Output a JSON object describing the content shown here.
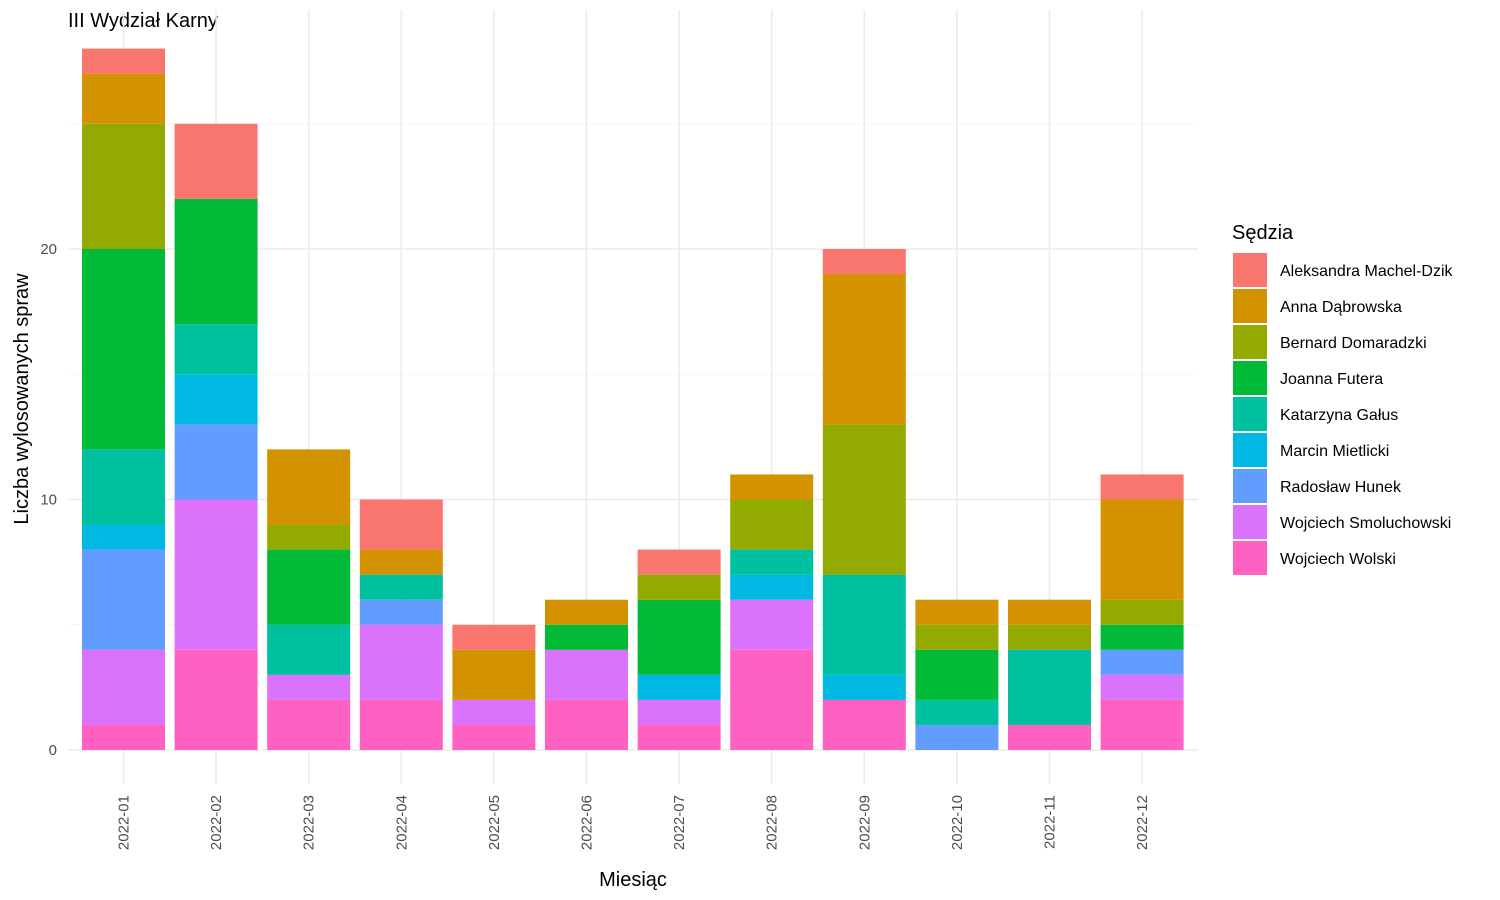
{
  "chart_data": {
    "type": "bar",
    "stacked": true,
    "title": "III Wydział Karny",
    "xlabel": "Miesiąc",
    "ylabel": "Liczba wylosowanych spraw",
    "ylim": [
      0,
      28
    ],
    "y_ticks": [
      0,
      10,
      20
    ],
    "grid": true,
    "legend_title": "Sędzia",
    "legend_position": "right",
    "categories": [
      "2022-01",
      "2022-02",
      "2022-03",
      "2022-04",
      "2022-05",
      "2022-06",
      "2022-07",
      "2022-08",
      "2022-09",
      "2022-10",
      "2022-11",
      "2022-12"
    ],
    "series": [
      {
        "name": "Aleksandra Machel-Dzik",
        "color": "#F8766D",
        "values": [
          1,
          3,
          0,
          2,
          1,
          0,
          1,
          0,
          1,
          0,
          0,
          1
        ]
      },
      {
        "name": "Anna Dąbrowska",
        "color": "#D39200",
        "values": [
          2,
          0,
          3,
          1,
          2,
          1,
          0,
          1,
          6,
          1,
          1,
          4
        ]
      },
      {
        "name": "Bernard Domaradzki",
        "color": "#93AA00",
        "values": [
          5,
          0,
          1,
          0,
          0,
          0,
          1,
          2,
          6,
          1,
          1,
          1
        ]
      },
      {
        "name": "Joanna Futera",
        "color": "#00BA38",
        "values": [
          8,
          5,
          3,
          0,
          0,
          1,
          3,
          0,
          0,
          2,
          0,
          1
        ]
      },
      {
        "name": "Katarzyna Gałus",
        "color": "#00C19F",
        "values": [
          3,
          2,
          2,
          1,
          0,
          0,
          0,
          1,
          4,
          1,
          3,
          0
        ]
      },
      {
        "name": "Marcin Mietlicki",
        "color": "#00B9E3",
        "values": [
          1,
          2,
          0,
          0,
          0,
          0,
          1,
          1,
          1,
          0,
          0,
          0
        ]
      },
      {
        "name": "Radosław Hunek",
        "color": "#619CFF",
        "values": [
          4,
          3,
          0,
          1,
          0,
          0,
          0,
          0,
          0,
          1,
          0,
          1
        ]
      },
      {
        "name": "Wojciech Smoluchowski",
        "color": "#DB72FB",
        "values": [
          3,
          6,
          1,
          3,
          1,
          2,
          1,
          2,
          0,
          0,
          0,
          1
        ]
      },
      {
        "name": "Wojciech Wolski",
        "color": "#FF61C3",
        "values": [
          1,
          4,
          2,
          2,
          1,
          2,
          1,
          4,
          2,
          0,
          1,
          2
        ]
      }
    ]
  }
}
